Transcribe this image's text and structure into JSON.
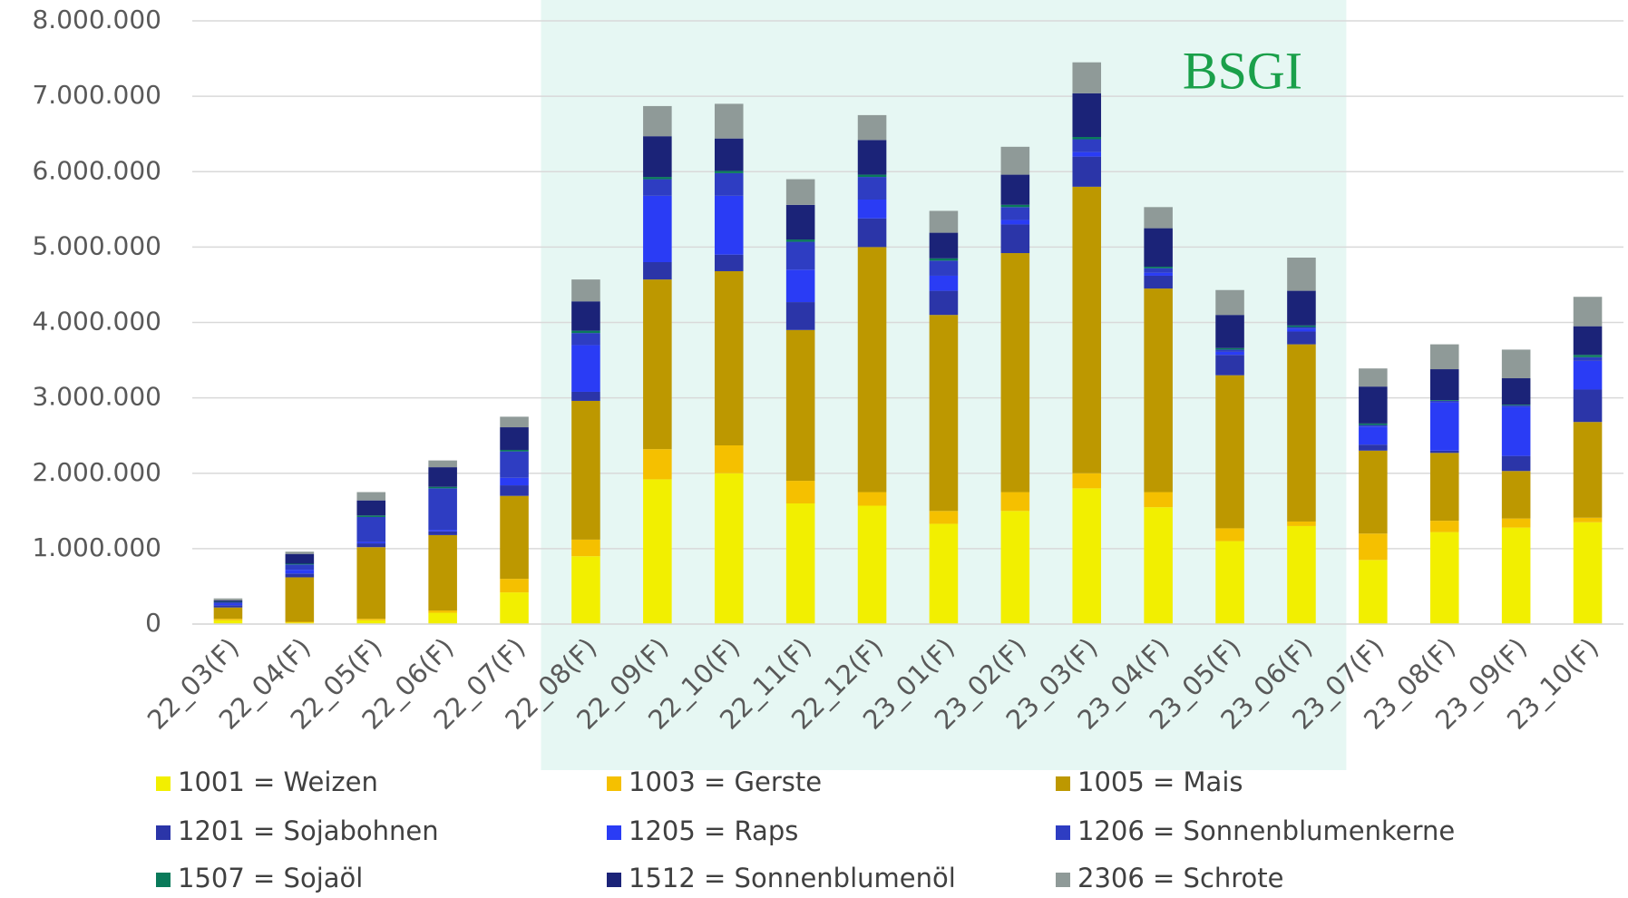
{
  "chart_data": {
    "type": "stacked_bar",
    "annotation": "BSGI",
    "categories": [
      "22_03(F)",
      "22_04(F)",
      "22_05(F)",
      "22_06(F)",
      "22_07(F)",
      "22_08(F)",
      "22_09(F)",
      "22_10(F)",
      "22_11(F)",
      "22_12(F)",
      "23_01(F)",
      "23_02(F)",
      "23_03(F)",
      "23_04(F)",
      "23_05(F)",
      "23_06(F)",
      "23_07(F)",
      "23_08(F)",
      "23_09(F)",
      "23_10(F)"
    ],
    "series": [
      {
        "name": "1001 = Weizen",
        "color": "#f2ef00",
        "values": [
          50000,
          20000,
          50000,
          150000,
          420000,
          900000,
          1920000,
          2000000,
          1600000,
          1570000,
          1330000,
          1500000,
          1800000,
          1550000,
          1100000,
          1300000,
          850000,
          1220000,
          1280000,
          1350000
        ]
      },
      {
        "name": "1003 = Gerste",
        "color": "#f5c000",
        "values": [
          20000,
          10000,
          20000,
          30000,
          180000,
          220000,
          400000,
          370000,
          300000,
          180000,
          170000,
          250000,
          200000,
          200000,
          170000,
          60000,
          350000,
          150000,
          120000,
          60000
        ]
      },
      {
        "name": "1005 = Mais",
        "color": "#bd9800",
        "values": [
          150000,
          590000,
          950000,
          1000000,
          1100000,
          1840000,
          2250000,
          2310000,
          2000000,
          3250000,
          2600000,
          3170000,
          3800000,
          2700000,
          2030000,
          2350000,
          1100000,
          900000,
          630000,
          1270000
        ]
      },
      {
        "name": "1201 = Sojabohnen",
        "color": "#2b35a8",
        "values": [
          30000,
          50000,
          50000,
          50000,
          140000,
          120000,
          230000,
          220000,
          370000,
          380000,
          320000,
          380000,
          400000,
          170000,
          270000,
          170000,
          80000,
          30000,
          200000,
          430000
        ]
      },
      {
        "name": "1205 = Raps",
        "color": "#2a3cf5",
        "values": [
          20000,
          50000,
          20000,
          20000,
          100000,
          620000,
          880000,
          780000,
          430000,
          250000,
          200000,
          60000,
          60000,
          40000,
          40000,
          40000,
          240000,
          640000,
          650000,
          380000
        ]
      },
      {
        "name": "1206 = Sonnenblumenkerne",
        "color": "#2e3dc2",
        "values": [
          20000,
          70000,
          330000,
          550000,
          350000,
          160000,
          220000,
          300000,
          370000,
          300000,
          200000,
          170000,
          170000,
          60000,
          30000,
          20000,
          20000,
          20000,
          20000,
          50000
        ]
      },
      {
        "name": "1507 = Sojaöl",
        "color": "#0a7a5a",
        "values": [
          5000,
          10000,
          20000,
          20000,
          20000,
          30000,
          30000,
          30000,
          30000,
          30000,
          30000,
          30000,
          30000,
          20000,
          20000,
          20000,
          20000,
          10000,
          10000,
          30000
        ]
      },
      {
        "name": "1512 = Sonnenblumenöl",
        "color": "#1b2378",
        "values": [
          20000,
          130000,
          200000,
          260000,
          300000,
          390000,
          540000,
          430000,
          460000,
          460000,
          340000,
          400000,
          580000,
          510000,
          440000,
          460000,
          490000,
          410000,
          350000,
          380000
        ]
      },
      {
        "name": "2306 = Schrote",
        "color": "#8f9a98",
        "values": [
          25000,
          30000,
          110000,
          90000,
          140000,
          290000,
          400000,
          460000,
          340000,
          330000,
          290000,
          370000,
          410000,
          280000,
          330000,
          440000,
          240000,
          330000,
          380000,
          390000
        ]
      }
    ],
    "ylim": [
      0,
      8000000
    ],
    "yticks": [
      0,
      {
        "value": 1000000,
        "label": "1.000.000"
      },
      {
        "value": 2000000,
        "label": "2.000.000"
      },
      {
        "value": 3000000,
        "label": "3.000.000"
      },
      {
        "value": 4000000,
        "label": "4.000.000"
      },
      {
        "value": 5000000,
        "label": "5.000.000"
      },
      {
        "value": 6000000,
        "label": "6.000.000"
      },
      {
        "value": 7000000,
        "label": "7.000.000"
      },
      {
        "value": 8000000,
        "label": "8.000.000"
      }
    ],
    "grid": true,
    "legend": "bottom"
  }
}
